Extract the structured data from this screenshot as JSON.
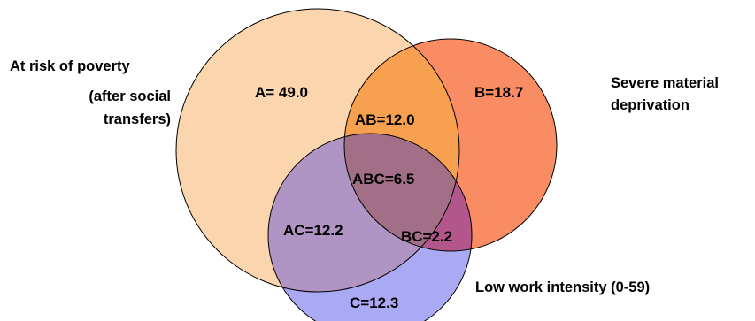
{
  "sets": {
    "a": {
      "label_line1": "At risk of poverty",
      "label_line2": "(after social",
      "label_line3": "transfers)",
      "color": "#FBD5AE"
    },
    "b": {
      "label_line1": "Severe material",
      "label_line2": "deprivation",
      "color": "#FA8C63"
    },
    "c": {
      "label": "Low work intensity (0-59)",
      "color": "#A9A9F4"
    }
  },
  "regions": {
    "a": "A= 49.0",
    "b": "B=18.7",
    "c": "C=12.3",
    "ab": "AB=12.0",
    "ac": "AC=12.2",
    "bc": "BC=2.2",
    "abc": "ABC=6.5"
  },
  "colors": {
    "ab": "#F7A04F",
    "ac": "#B095C4",
    "bc": "#B2568B",
    "abc": "#A26F86",
    "outline": "#000000"
  }
}
